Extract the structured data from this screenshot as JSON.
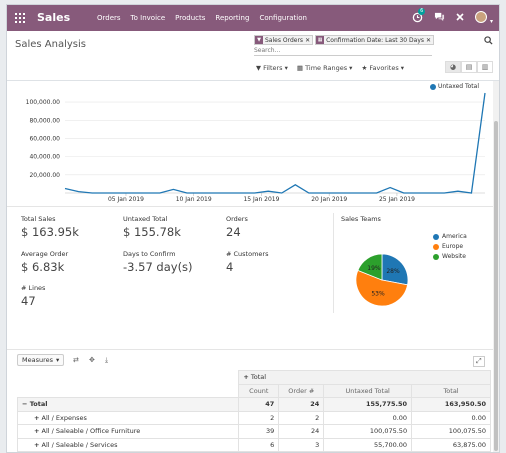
{
  "navbar": {
    "brand": "Sales",
    "menu": [
      "Orders",
      "To Invoice",
      "Products",
      "Reporting",
      "Configuration"
    ],
    "chat_badge": "6"
  },
  "page": {
    "title": "Sales Analysis",
    "facets": [
      {
        "icon": "filter-icon",
        "text": "Sales Orders"
      },
      {
        "icon": "calendar-icon",
        "text": "Confirmation Date: Last 30 Days"
      }
    ],
    "search_placeholder": "Search...",
    "filter_buttons": [
      "Filters",
      "Time Ranges",
      "Favorites"
    ]
  },
  "chart_data": {
    "type": "line",
    "series": [
      {
        "name": "Untaxed Total",
        "color": "#1f77b4"
      }
    ],
    "x_ticks": [
      "05 Jan 2019",
      "10 Jan 2019",
      "15 Jan 2019",
      "20 Jan 2019",
      "25 Jan 2019"
    ],
    "y_ticks": [
      "100,000.00",
      "80,000.00",
      "60,000.00",
      "40,000.00",
      "20,000.00"
    ],
    "ylim": [
      0,
      110000
    ],
    "points": [
      {
        "x": 0,
        "y": 5000
      },
      {
        "x": 1,
        "y": 1500
      },
      {
        "x": 2,
        "y": 0
      },
      {
        "x": 3,
        "y": 0
      },
      {
        "x": 4,
        "y": 0
      },
      {
        "x": 5,
        "y": 0
      },
      {
        "x": 6,
        "y": 0
      },
      {
        "x": 7,
        "y": 0
      },
      {
        "x": 8,
        "y": 4000
      },
      {
        "x": 9,
        "y": 0
      },
      {
        "x": 10,
        "y": 0
      },
      {
        "x": 11,
        "y": 0
      },
      {
        "x": 12,
        "y": 0
      },
      {
        "x": 13,
        "y": 0
      },
      {
        "x": 14,
        "y": 0
      },
      {
        "x": 15,
        "y": 2000
      },
      {
        "x": 16,
        "y": 0
      },
      {
        "x": 17,
        "y": 9000
      },
      {
        "x": 18,
        "y": 0
      },
      {
        "x": 19,
        "y": 0
      },
      {
        "x": 20,
        "y": 0
      },
      {
        "x": 21,
        "y": 0
      },
      {
        "x": 22,
        "y": 0
      },
      {
        "x": 23,
        "y": 0
      },
      {
        "x": 24,
        "y": 6000
      },
      {
        "x": 25,
        "y": 0
      },
      {
        "x": 26,
        "y": 0
      },
      {
        "x": 27,
        "y": 0
      },
      {
        "x": 28,
        "y": 0
      },
      {
        "x": 29,
        "y": 2000
      },
      {
        "x": 30,
        "y": 0
      },
      {
        "x": 31,
        "y": 110000
      }
    ]
  },
  "kpis": {
    "total_sales": {
      "label": "Total Sales",
      "value": "$ 163.95k"
    },
    "untaxed_total": {
      "label": "Untaxed Total",
      "value": "$ 155.78k"
    },
    "orders": {
      "label": "Orders",
      "value": "24"
    },
    "average_order": {
      "label": "Average Order",
      "value": "$ 6.83k"
    },
    "days_to_confirm": {
      "label": "Days to Confirm",
      "value": "-3.57 day(s)"
    },
    "customers": {
      "label": "# Customers",
      "value": "4"
    },
    "lines": {
      "label": "# Lines",
      "value": "47"
    }
  },
  "sales_teams": {
    "title": "Sales Teams",
    "slices": [
      {
        "name": "America",
        "percent": 28,
        "label": "28%",
        "color": "#1f77b4"
      },
      {
        "name": "Europe",
        "percent": 53,
        "label": "53%",
        "color": "#ff7f0e"
      },
      {
        "name": "Website",
        "percent": 19,
        "label": "19%",
        "color": "#2ca02c"
      }
    ]
  },
  "pivot": {
    "measures_label": "Measures",
    "col_header": "Total",
    "columns": [
      "Count",
      "Order #",
      "Untaxed Total",
      "Total"
    ],
    "rows": [
      {
        "label": "Total",
        "values": [
          "47",
          "24",
          "155,775.50",
          "163,950.50"
        ],
        "total": true
      },
      {
        "label": "All / Expenses",
        "values": [
          "2",
          "2",
          "0.00",
          "0.00"
        ]
      },
      {
        "label": "All / Saleable / Office Furniture",
        "values": [
          "39",
          "24",
          "100,075.50",
          "100,075.50"
        ]
      },
      {
        "label": "All / Saleable / Services",
        "values": [
          "6",
          "3",
          "55,700.00",
          "63,875.00"
        ]
      }
    ]
  }
}
